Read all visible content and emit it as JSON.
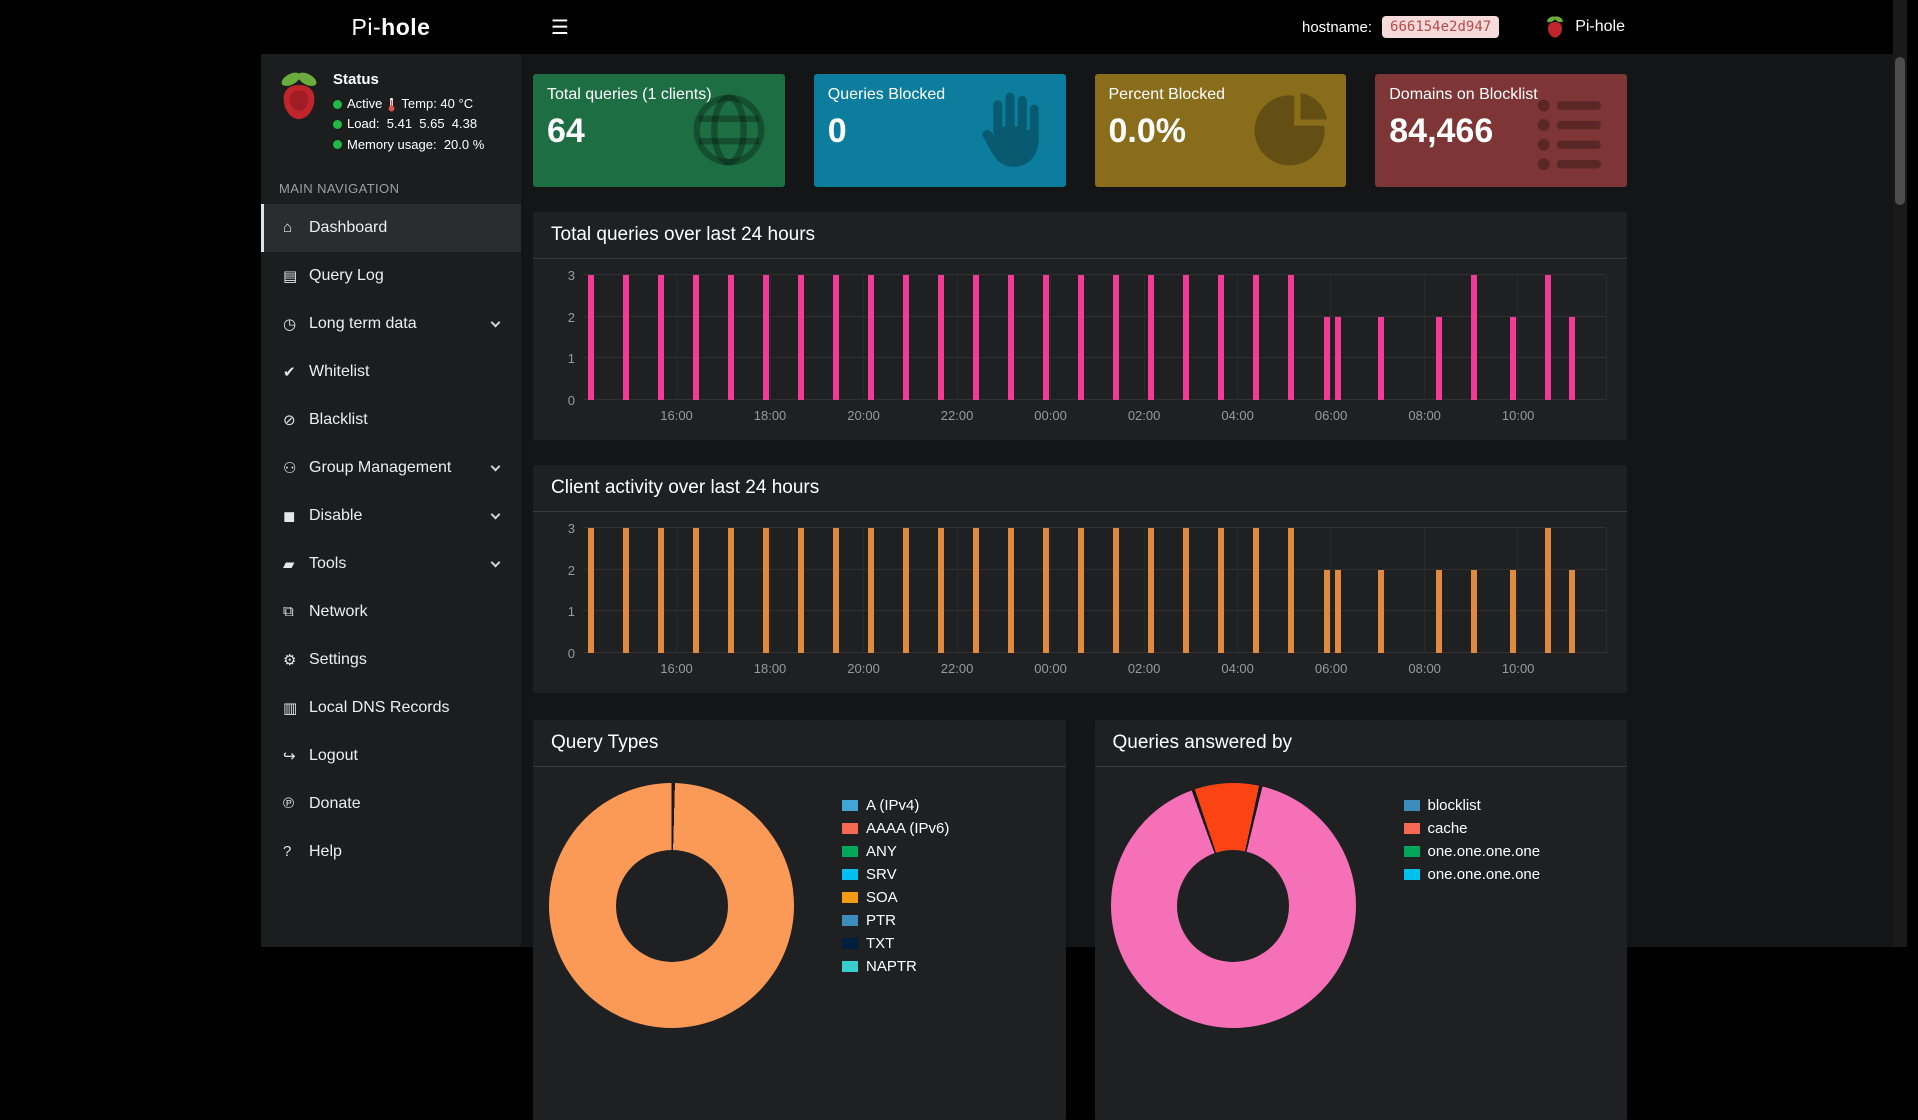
{
  "navbar": {
    "hamburger_icon": "☰",
    "hostname_label": "hostname:",
    "hostname_value": "666154e2d947",
    "brand": "Pi-hole"
  },
  "sidebar": {
    "logo_prefix": "Pi-",
    "logo_bold": "hole",
    "status": {
      "title": "Status",
      "active_label": "Active",
      "temp_text": "Temp: 40 °C",
      "load_text": "Load:  5.41  5.65  4.38",
      "memory_text": "Memory usage:  20.0 %",
      "dot_color": "#21ba45"
    },
    "section_label": "MAIN NAVIGATION",
    "items": [
      {
        "label": "Dashboard",
        "icon": "home",
        "active": true,
        "expandable": false
      },
      {
        "label": "Query Log",
        "icon": "file",
        "active": false,
        "expandable": false
      },
      {
        "label": "Long term data",
        "icon": "clock",
        "active": false,
        "expandable": true
      },
      {
        "label": "Whitelist",
        "icon": "check-circle",
        "active": false,
        "expandable": false
      },
      {
        "label": "Blacklist",
        "icon": "ban",
        "active": false,
        "expandable": false
      },
      {
        "label": "Group Management",
        "icon": "users",
        "active": false,
        "expandable": true
      },
      {
        "label": "Disable",
        "icon": "stop",
        "active": false,
        "expandable": true
      },
      {
        "label": "Tools",
        "icon": "folder",
        "active": false,
        "expandable": true
      },
      {
        "label": "Network",
        "icon": "network",
        "active": false,
        "expandable": false
      },
      {
        "label": "Settings",
        "icon": "gears",
        "active": false,
        "expandable": false
      },
      {
        "label": "Local DNS Records",
        "icon": "address-book",
        "active": false,
        "expandable": false
      },
      {
        "label": "Logout",
        "icon": "sign-out",
        "active": false,
        "expandable": false
      },
      {
        "label": "Donate",
        "icon": "paypal",
        "active": false,
        "expandable": false
      },
      {
        "label": "Help",
        "icon": "question-circle",
        "active": false,
        "expandable": false
      }
    ]
  },
  "icon_glyphs": {
    "home": "⌂",
    "file": "▤",
    "clock": "◷",
    "check-circle": "✔",
    "ban": "⊘",
    "users": "⚇",
    "stop": "◼",
    "folder": "▰",
    "network": "⧉",
    "gears": "⚙",
    "address-book": "▥",
    "sign-out": "↪",
    "paypal": "℗",
    "question-circle": "?"
  },
  "cards": [
    {
      "title": "Total queries (1 clients)",
      "value": "64",
      "color": "#1d6e43",
      "icon": "globe"
    },
    {
      "title": "Queries Blocked",
      "value": "0",
      "color": "#0c7d9c",
      "icon": "hand"
    },
    {
      "title": "Percent Blocked",
      "value": "0.0%",
      "color": "#8a6d1b",
      "icon": "pie"
    },
    {
      "title": "Domains on Blocklist",
      "value": "84,466",
      "color": "#7d3535",
      "icon": "list"
    }
  ],
  "chart_data": [
    {
      "type": "bar",
      "title": "Total queries over last 24 hours",
      "bar_color": "#f23a97",
      "ylim": [
        0,
        3
      ],
      "yticks": [
        0,
        1,
        2,
        3
      ],
      "x_start_hour": 14.0,
      "x_end_hour": 35.9,
      "xticks": [
        "16:00",
        "18:00",
        "20:00",
        "22:00",
        "00:00",
        "02:00",
        "04:00",
        "06:00",
        "08:00",
        "10:00"
      ],
      "bars": [
        {
          "time": "14:10",
          "value": 3
        },
        {
          "time": "14:55",
          "value": 3
        },
        {
          "time": "15:40",
          "value": 3
        },
        {
          "time": "16:25",
          "value": 3
        },
        {
          "time": "17:10",
          "value": 3
        },
        {
          "time": "17:55",
          "value": 3
        },
        {
          "time": "18:40",
          "value": 3
        },
        {
          "time": "19:25",
          "value": 3
        },
        {
          "time": "20:10",
          "value": 3
        },
        {
          "time": "20:55",
          "value": 3
        },
        {
          "time": "21:40",
          "value": 3
        },
        {
          "time": "22:25",
          "value": 3
        },
        {
          "time": "23:10",
          "value": 3
        },
        {
          "time": "23:55",
          "value": 3
        },
        {
          "time": "00:40",
          "value": 3
        },
        {
          "time": "01:25",
          "value": 3
        },
        {
          "time": "02:10",
          "value": 3
        },
        {
          "time": "02:55",
          "value": 3
        },
        {
          "time": "03:40",
          "value": 3
        },
        {
          "time": "04:25",
          "value": 3
        },
        {
          "time": "05:10",
          "value": 3
        },
        {
          "time": "05:55",
          "value": 2
        },
        {
          "time": "06:10",
          "value": 2
        },
        {
          "time": "07:05",
          "value": 2
        },
        {
          "time": "08:20",
          "value": 2
        },
        {
          "time": "09:05",
          "value": 3
        },
        {
          "time": "09:55",
          "value": 2
        },
        {
          "time": "10:40",
          "value": 3
        },
        {
          "time": "11:10",
          "value": 2
        }
      ]
    },
    {
      "type": "bar",
      "title": "Client activity over last 24 hours",
      "bar_color": "#e08a3f",
      "ylim": [
        0,
        3
      ],
      "yticks": [
        0,
        1,
        2,
        3
      ],
      "x_start_hour": 14.0,
      "x_end_hour": 35.9,
      "xticks": [
        "16:00",
        "18:00",
        "20:00",
        "22:00",
        "00:00",
        "02:00",
        "04:00",
        "06:00",
        "08:00",
        "10:00"
      ],
      "bars": [
        {
          "time": "14:10",
          "value": 3
        },
        {
          "time": "14:55",
          "value": 3
        },
        {
          "time": "15:40",
          "value": 3
        },
        {
          "time": "16:25",
          "value": 3
        },
        {
          "time": "17:10",
          "value": 3
        },
        {
          "time": "17:55",
          "value": 3
        },
        {
          "time": "18:40",
          "value": 3
        },
        {
          "time": "19:25",
          "value": 3
        },
        {
          "time": "20:10",
          "value": 3
        },
        {
          "time": "20:55",
          "value": 3
        },
        {
          "time": "21:40",
          "value": 3
        },
        {
          "time": "22:25",
          "value": 3
        },
        {
          "time": "23:10",
          "value": 3
        },
        {
          "time": "23:55",
          "value": 3
        },
        {
          "time": "00:40",
          "value": 3
        },
        {
          "time": "01:25",
          "value": 3
        },
        {
          "time": "02:10",
          "value": 3
        },
        {
          "time": "02:55",
          "value": 3
        },
        {
          "time": "03:40",
          "value": 3
        },
        {
          "time": "04:25",
          "value": 3
        },
        {
          "time": "05:10",
          "value": 3
        },
        {
          "time": "05:55",
          "value": 2
        },
        {
          "time": "06:10",
          "value": 2
        },
        {
          "time": "07:05",
          "value": 2
        },
        {
          "time": "08:20",
          "value": 2
        },
        {
          "time": "09:05",
          "value": 2
        },
        {
          "time": "09:55",
          "value": 2
        },
        {
          "time": "10:40",
          "value": 3
        },
        {
          "time": "11:10",
          "value": 2
        }
      ]
    },
    {
      "type": "donut",
      "title": "Query Types",
      "rotation_deg": 0,
      "slices": [
        {
          "label": "A (IPv4)",
          "pct": 100,
          "color": "#fb9a57"
        }
      ],
      "legend": [
        {
          "label": "A (IPv4)",
          "color": "#42a5d5"
        },
        {
          "label": "AAAA (IPv6)",
          "color": "#f56954"
        },
        {
          "label": "ANY",
          "color": "#00a65a"
        },
        {
          "label": "SRV",
          "color": "#00c0ef"
        },
        {
          "label": "SOA",
          "color": "#f39c12"
        },
        {
          "label": "PTR",
          "color": "#3c8dbc"
        },
        {
          "label": "TXT",
          "color": "#001f3f"
        },
        {
          "label": "NAPTR",
          "color": "#39cccc"
        }
      ]
    },
    {
      "type": "donut",
      "title": "Queries answered by",
      "rotation_deg": -20,
      "slices": [
        {
          "label": "cache",
          "pct": 8.9,
          "color": "#fc4313"
        },
        {
          "label": "one.one.one.one",
          "pct": 91.1,
          "color": "#f670b8"
        }
      ],
      "legend": [
        {
          "label": "blocklist",
          "color": "#3c8dbc"
        },
        {
          "label": "cache",
          "color": "#f56954"
        },
        {
          "label": "one.one.one.one",
          "color": "#00a65a"
        },
        {
          "label": "one.one.one.one",
          "color": "#00c0ef"
        }
      ]
    }
  ]
}
